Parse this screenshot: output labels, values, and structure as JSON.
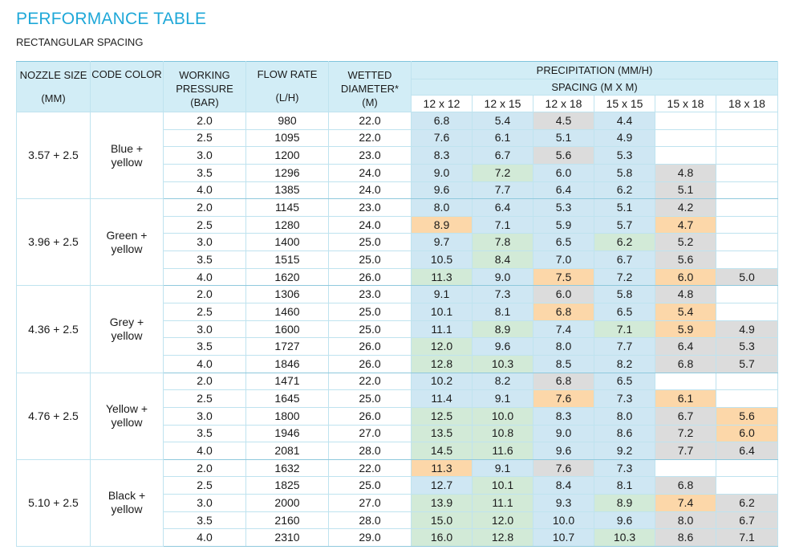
{
  "title": "PERFORMANCE TABLE",
  "subtitle": "RECTANGULAR SPACING",
  "headers": {
    "nozzle_size": "NOZZLE SIZE",
    "nozzle_unit": "(MM)",
    "code_color": "CODE COLOR",
    "working_pressure": "WORKING PRESSURE",
    "pressure_unit": "(BAR)",
    "flow_rate": "FLOW RATE",
    "flow_unit": "(L/H)",
    "wetted_diameter": "WETTED DIAMETER*",
    "diameter_unit": "(M)",
    "precipitation": "PRECIPITATION (MM/H)",
    "spacing": "SPACING (M X M)",
    "spacings": [
      "12 x 12",
      "12 x 15",
      "12 x 18",
      "15 x 15",
      "15 x 18",
      "18 x 18"
    ]
  },
  "legend_colors": {
    "blue": "#cfe7f3",
    "green": "#d2ead7",
    "grey": "#dcdcdc",
    "orange": "#fcd7a9"
  },
  "groups": [
    {
      "nozzle": "3.57 + 2.5",
      "color_name": [
        "Blue +",
        "yellow"
      ],
      "rows": [
        {
          "pressure": "2.0",
          "flow": "980",
          "diameter": "22.0",
          "values": [
            "6.8",
            "5.4",
            "4.5",
            "4.4",
            "",
            ""
          ],
          "colors": [
            "b",
            "b",
            "g",
            "b",
            "n",
            "n"
          ]
        },
        {
          "pressure": "2.5",
          "flow": "1095",
          "diameter": "22.0",
          "values": [
            "7.6",
            "6.1",
            "5.1",
            "4.9",
            "",
            ""
          ],
          "colors": [
            "b",
            "b",
            "b",
            "b",
            "n",
            "n"
          ]
        },
        {
          "pressure": "3.0",
          "flow": "1200",
          "diameter": "23.0",
          "values": [
            "8.3",
            "6.7",
            "5.6",
            "5.3",
            "",
            ""
          ],
          "colors": [
            "b",
            "b",
            "g",
            "b",
            "n",
            "n"
          ]
        },
        {
          "pressure": "3.5",
          "flow": "1296",
          "diameter": "24.0",
          "values": [
            "9.0",
            "7.2",
            "6.0",
            "5.8",
            "4.8",
            ""
          ],
          "colors": [
            "b",
            "gr",
            "b",
            "b",
            "g",
            "n"
          ]
        },
        {
          "pressure": "4.0",
          "flow": "1385",
          "diameter": "24.0",
          "values": [
            "9.6",
            "7.7",
            "6.4",
            "6.2",
            "5.1",
            ""
          ],
          "colors": [
            "b",
            "b",
            "b",
            "b",
            "g",
            "n"
          ]
        }
      ]
    },
    {
      "nozzle": "3.96 + 2.5",
      "color_name": [
        "Green +",
        "yellow"
      ],
      "rows": [
        {
          "pressure": "2.0",
          "flow": "1145",
          "diameter": "23.0",
          "values": [
            "8.0",
            "6.4",
            "5.3",
            "5.1",
            "4.2",
            ""
          ],
          "colors": [
            "b",
            "b",
            "b",
            "b",
            "g",
            "n"
          ]
        },
        {
          "pressure": "2.5",
          "flow": "1280",
          "diameter": "24.0",
          "values": [
            "8.9",
            "7.1",
            "5.9",
            "5.7",
            "4.7",
            ""
          ],
          "colors": [
            "o",
            "b",
            "b",
            "b",
            "o",
            "n"
          ]
        },
        {
          "pressure": "3.0",
          "flow": "1400",
          "diameter": "25.0",
          "values": [
            "9.7",
            "7.8",
            "6.5",
            "6.2",
            "5.2",
            ""
          ],
          "colors": [
            "b",
            "gr",
            "b",
            "gr",
            "g",
            "n"
          ]
        },
        {
          "pressure": "3.5",
          "flow": "1515",
          "diameter": "25.0",
          "values": [
            "10.5",
            "8.4",
            "7.0",
            "6.7",
            "5.6",
            ""
          ],
          "colors": [
            "b",
            "gr",
            "b",
            "b",
            "g",
            "n"
          ]
        },
        {
          "pressure": "4.0",
          "flow": "1620",
          "diameter": "26.0",
          "values": [
            "11.3",
            "9.0",
            "7.5",
            "7.2",
            "6.0",
            "5.0"
          ],
          "colors": [
            "gr",
            "b",
            "o",
            "b",
            "o",
            "g"
          ]
        }
      ]
    },
    {
      "nozzle": "4.36 + 2.5",
      "color_name": [
        "Grey +",
        "yellow"
      ],
      "rows": [
        {
          "pressure": "2.0",
          "flow": "1306",
          "diameter": "23.0",
          "values": [
            "9.1",
            "7.3",
            "6.0",
            "5.8",
            "4.8",
            ""
          ],
          "colors": [
            "b",
            "b",
            "g",
            "b",
            "g",
            "n"
          ]
        },
        {
          "pressure": "2.5",
          "flow": "1460",
          "diameter": "25.0",
          "values": [
            "10.1",
            "8.1",
            "6.8",
            "6.5",
            "5.4",
            ""
          ],
          "colors": [
            "b",
            "b",
            "o",
            "b",
            "o",
            "n"
          ]
        },
        {
          "pressure": "3.0",
          "flow": "1600",
          "diameter": "25.0",
          "values": [
            "11.1",
            "8.9",
            "7.4",
            "7.1",
            "5.9",
            "4.9"
          ],
          "colors": [
            "b",
            "gr",
            "b",
            "gr",
            "o",
            "g"
          ]
        },
        {
          "pressure": "3.5",
          "flow": "1727",
          "diameter": "26.0",
          "values": [
            "12.0",
            "9.6",
            "8.0",
            "7.7",
            "6.4",
            "5.3"
          ],
          "colors": [
            "gr",
            "b",
            "b",
            "b",
            "g",
            "g"
          ]
        },
        {
          "pressure": "4.0",
          "flow": "1846",
          "diameter": "26.0",
          "values": [
            "12.8",
            "10.3",
            "8.5",
            "8.2",
            "6.8",
            "5.7"
          ],
          "colors": [
            "gr",
            "gr",
            "b",
            "b",
            "g",
            "g"
          ]
        }
      ]
    },
    {
      "nozzle": "4.76 + 2.5",
      "color_name": [
        "Yellow +",
        "yellow"
      ],
      "rows": [
        {
          "pressure": "2.0",
          "flow": "1471",
          "diameter": "22.0",
          "values": [
            "10.2",
            "8.2",
            "6.8",
            "6.5",
            "",
            ""
          ],
          "colors": [
            "b",
            "b",
            "g",
            "b",
            "n",
            "n"
          ]
        },
        {
          "pressure": "2.5",
          "flow": "1645",
          "diameter": "25.0",
          "values": [
            "11.4",
            "9.1",
            "7.6",
            "7.3",
            "6.1",
            ""
          ],
          "colors": [
            "b",
            "b",
            "o",
            "b",
            "o",
            "n"
          ]
        },
        {
          "pressure": "3.0",
          "flow": "1800",
          "diameter": "26.0",
          "values": [
            "12.5",
            "10.0",
            "8.3",
            "8.0",
            "6.7",
            "5.6"
          ],
          "colors": [
            "gr",
            "gr",
            "b",
            "b",
            "g",
            "o"
          ]
        },
        {
          "pressure": "3.5",
          "flow": "1946",
          "diameter": "27.0",
          "values": [
            "13.5",
            "10.8",
            "9.0",
            "8.6",
            "7.2",
            "6.0"
          ],
          "colors": [
            "gr",
            "gr",
            "b",
            "b",
            "g",
            "o"
          ]
        },
        {
          "pressure": "4.0",
          "flow": "2081",
          "diameter": "28.0",
          "values": [
            "14.5",
            "11.6",
            "9.6",
            "9.2",
            "7.7",
            "6.4"
          ],
          "colors": [
            "gr",
            "gr",
            "b",
            "b",
            "g",
            "g"
          ]
        }
      ]
    },
    {
      "nozzle": "5.10 + 2.5",
      "color_name": [
        "Black +",
        "yellow"
      ],
      "rows": [
        {
          "pressure": "2.0",
          "flow": "1632",
          "diameter": "22.0",
          "values": [
            "11.3",
            "9.1",
            "7.6",
            "7.3",
            "",
            ""
          ],
          "colors": [
            "o",
            "b",
            "g",
            "b",
            "n",
            "n"
          ]
        },
        {
          "pressure": "2.5",
          "flow": "1825",
          "diameter": "25.0",
          "values": [
            "12.7",
            "10.1",
            "8.4",
            "8.1",
            "6.8",
            ""
          ],
          "colors": [
            "b",
            "gr",
            "b",
            "b",
            "g",
            "n"
          ]
        },
        {
          "pressure": "3.0",
          "flow": "2000",
          "diameter": "27.0",
          "values": [
            "13.9",
            "11.1",
            "9.3",
            "8.9",
            "7.4",
            "6.2"
          ],
          "colors": [
            "gr",
            "gr",
            "b",
            "gr",
            "o",
            "g"
          ]
        },
        {
          "pressure": "3.5",
          "flow": "2160",
          "diameter": "28.0",
          "values": [
            "15.0",
            "12.0",
            "10.0",
            "9.6",
            "8.0",
            "6.7"
          ],
          "colors": [
            "gr",
            "gr",
            "b",
            "b",
            "g",
            "g"
          ]
        },
        {
          "pressure": "4.0",
          "flow": "2310",
          "diameter": "29.0",
          "values": [
            "16.0",
            "12.8",
            "10.7",
            "10.3",
            "8.6",
            "7.1"
          ],
          "colors": [
            "gr",
            "gr",
            "b",
            "gr",
            "g",
            "g"
          ]
        }
      ]
    }
  ]
}
